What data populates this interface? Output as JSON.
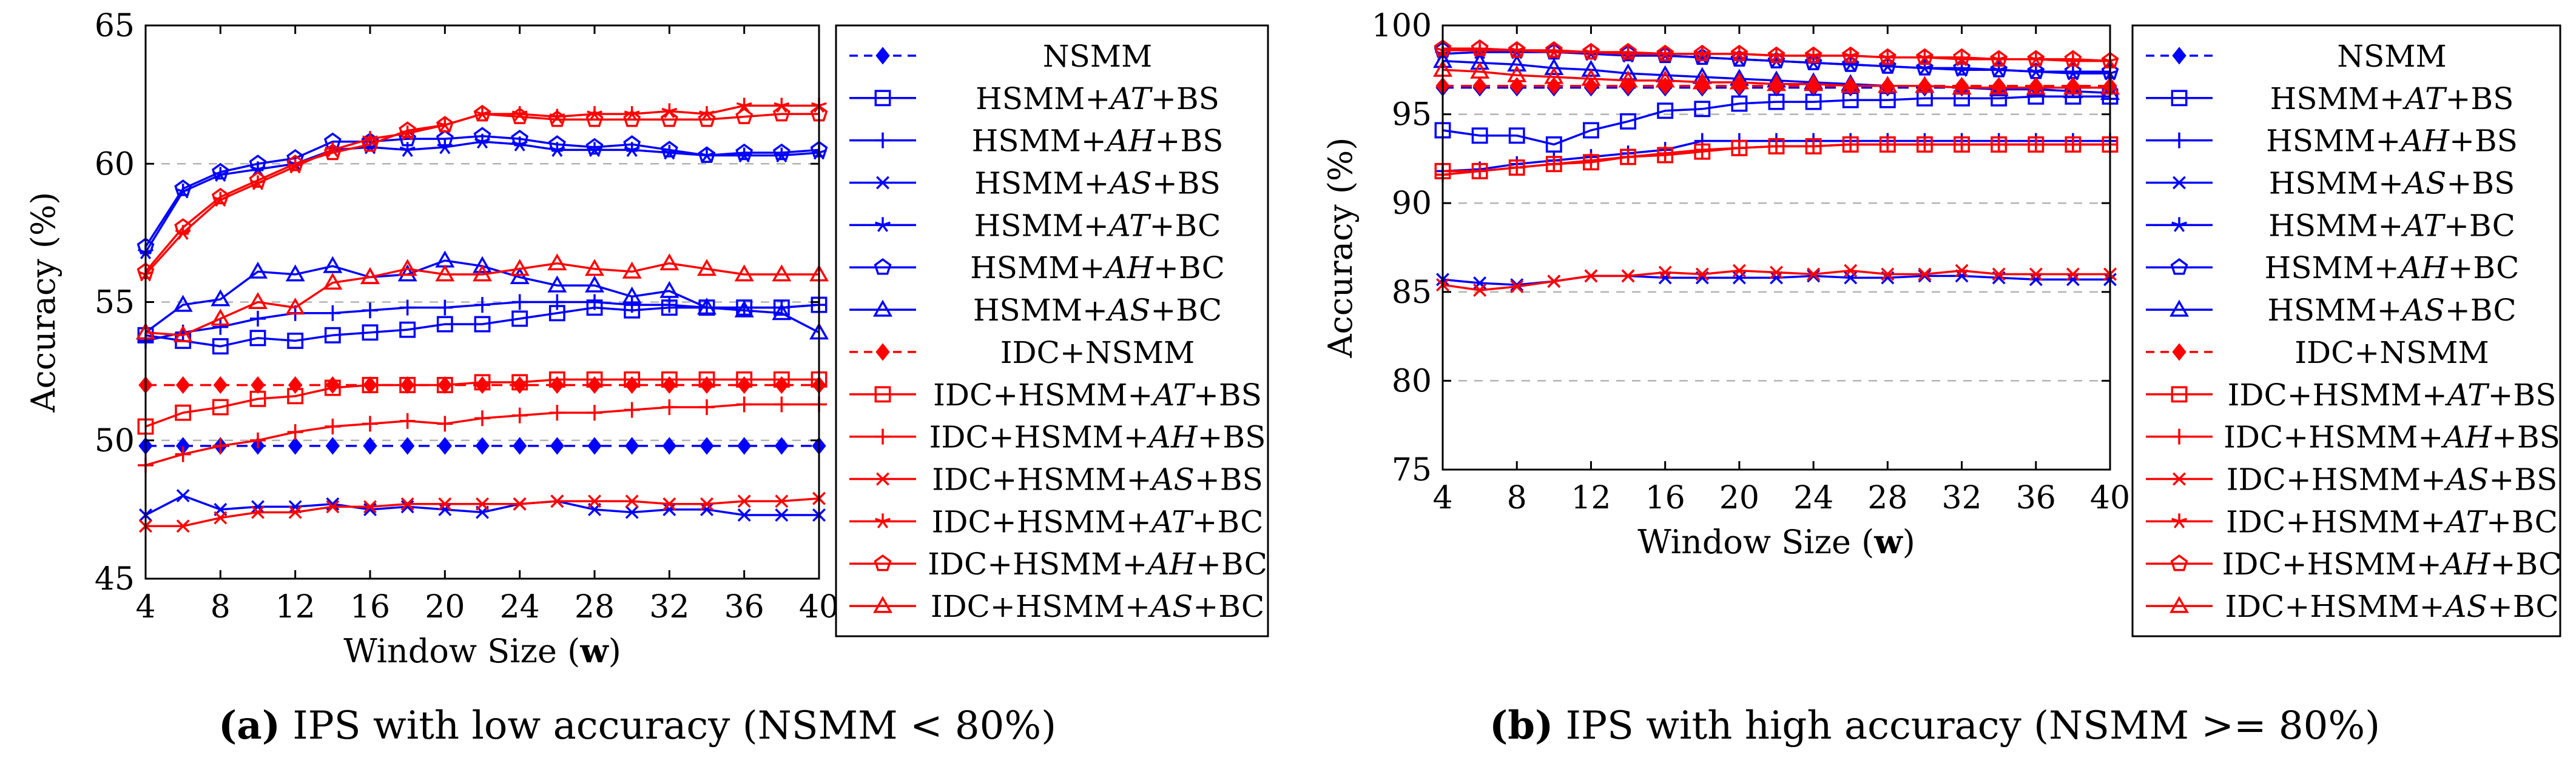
{
  "colors": {
    "blue": "#0000ff",
    "red": "#ff0000",
    "grid": "#b3b3b3",
    "axis": "#000000"
  },
  "chart_data": [
    {
      "type": "line",
      "panel": "a",
      "caption_label": "(a)",
      "caption_text": "IPS with low accuracy (NSMM < 80%)",
      "xlabel": "Window Size",
      "xlabel_var": "w",
      "ylabel": "Accuracy (%)",
      "xlim": [
        4,
        40
      ],
      "ylim": [
        45,
        65
      ],
      "xticks": [
        4,
        8,
        12,
        16,
        20,
        24,
        28,
        32,
        36,
        40
      ],
      "yticks": [
        45,
        50,
        55,
        60,
        65
      ],
      "grid_y": [
        50,
        55,
        60
      ],
      "legend_position": "right",
      "x": [
        4,
        6,
        8,
        10,
        12,
        14,
        16,
        18,
        20,
        22,
        24,
        26,
        28,
        30,
        32,
        34,
        36,
        38,
        40
      ],
      "series": [
        {
          "name": "NSMM",
          "prefix": "NSMM",
          "italic": "",
          "suffix": "",
          "color": "blue",
          "marker": "diamond",
          "dashed": true,
          "values": [
            49.8,
            49.8,
            49.8,
            49.8,
            49.8,
            49.8,
            49.8,
            49.8,
            49.8,
            49.8,
            49.8,
            49.8,
            49.8,
            49.8,
            49.8,
            49.8,
            49.8,
            49.8,
            49.8
          ]
        },
        {
          "name": "HSMM+AT+BS",
          "prefix": "HSMM+",
          "italic": "AT",
          "suffix": "+BS",
          "color": "blue",
          "marker": "square",
          "dashed": false,
          "values": [
            53.8,
            53.6,
            53.4,
            53.7,
            53.6,
            53.8,
            53.9,
            54.0,
            54.2,
            54.2,
            54.4,
            54.6,
            54.8,
            54.7,
            54.8,
            54.8,
            54.8,
            54.8,
            54.9
          ]
        },
        {
          "name": "HSMM+AH+BS",
          "prefix": "HSMM+",
          "italic": "AH",
          "suffix": "+BS",
          "color": "blue",
          "marker": "plus",
          "dashed": false,
          "values": [
            53.6,
            53.9,
            54.1,
            54.4,
            54.6,
            54.6,
            54.7,
            54.8,
            54.8,
            54.9,
            55.0,
            55.0,
            55.0,
            54.9,
            54.9,
            54.8,
            54.8,
            54.8,
            54.9
          ]
        },
        {
          "name": "HSMM+AS+BS",
          "prefix": "HSMM+",
          "italic": "AS",
          "suffix": "+BS",
          "color": "blue",
          "marker": "x",
          "dashed": false,
          "values": [
            47.3,
            48.0,
            47.5,
            47.6,
            47.6,
            47.7,
            47.5,
            47.6,
            47.5,
            47.4,
            47.7,
            47.8,
            47.5,
            47.4,
            47.5,
            47.5,
            47.3,
            47.3,
            47.3
          ]
        },
        {
          "name": "HSMM+AT+BC",
          "prefix": "HSMM+",
          "italic": "AT",
          "suffix": "+BC",
          "color": "blue",
          "marker": "star",
          "dashed": false,
          "values": [
            56.8,
            59.0,
            59.6,
            59.8,
            60.0,
            60.5,
            60.6,
            60.5,
            60.6,
            60.8,
            60.7,
            60.5,
            60.5,
            60.5,
            60.4,
            60.3,
            60.3,
            60.3,
            60.4
          ]
        },
        {
          "name": "HSMM+AH+BC",
          "prefix": "HSMM+",
          "italic": "AH",
          "suffix": "+BC",
          "color": "blue",
          "marker": "pentagon",
          "dashed": false,
          "values": [
            57.0,
            59.1,
            59.7,
            60.0,
            60.2,
            60.8,
            60.8,
            60.9,
            60.9,
            61.0,
            60.9,
            60.7,
            60.6,
            60.7,
            60.5,
            60.3,
            60.4,
            60.4,
            60.5
          ]
        },
        {
          "name": "HSMM+AS+BC",
          "prefix": "HSMM+",
          "italic": "AS",
          "suffix": "+BC",
          "color": "blue",
          "marker": "triangle",
          "dashed": false,
          "values": [
            53.9,
            54.9,
            55.1,
            56.1,
            56.0,
            56.3,
            55.9,
            56.0,
            56.5,
            56.3,
            55.9,
            55.6,
            55.6,
            55.2,
            55.4,
            54.8,
            54.7,
            54.6,
            53.9
          ]
        },
        {
          "name": "IDC+NSMM",
          "prefix": "IDC+NSMM",
          "italic": "",
          "suffix": "",
          "color": "red",
          "marker": "diamond",
          "dashed": true,
          "values": [
            52.0,
            52.0,
            52.0,
            52.0,
            52.0,
            52.0,
            52.0,
            52.0,
            52.0,
            52.0,
            52.0,
            52.0,
            52.0,
            52.0,
            52.0,
            52.0,
            52.0,
            52.0,
            52.0
          ]
        },
        {
          "name": "IDC+HSMM+AT+BS",
          "prefix": "IDC+HSMM+",
          "italic": "AT",
          "suffix": "+BS",
          "color": "red",
          "marker": "square",
          "dashed": false,
          "values": [
            50.5,
            51.0,
            51.2,
            51.5,
            51.6,
            51.9,
            52.0,
            52.0,
            52.0,
            52.1,
            52.1,
            52.2,
            52.2,
            52.2,
            52.2,
            52.2,
            52.2,
            52.2,
            52.2
          ]
        },
        {
          "name": "IDC+HSMM+AH+BS",
          "prefix": "IDC+HSMM+",
          "italic": "AH",
          "suffix": "+BS",
          "color": "red",
          "marker": "plus",
          "dashed": false,
          "values": [
            49.1,
            49.5,
            49.8,
            50.0,
            50.3,
            50.5,
            50.6,
            50.7,
            50.6,
            50.8,
            50.9,
            51.0,
            51.0,
            51.1,
            51.2,
            51.2,
            51.3,
            51.3,
            51.3
          ]
        },
        {
          "name": "IDC+HSMM+AS+BS",
          "prefix": "IDC+HSMM+",
          "italic": "AS",
          "suffix": "+BS",
          "color": "red",
          "marker": "x",
          "dashed": false,
          "values": [
            46.9,
            46.9,
            47.2,
            47.4,
            47.4,
            47.6,
            47.6,
            47.7,
            47.7,
            47.7,
            47.7,
            47.8,
            47.8,
            47.8,
            47.7,
            47.7,
            47.8,
            47.8,
            47.9
          ]
        },
        {
          "name": "IDC+HSMM+AT+BC",
          "prefix": "IDC+HSMM+",
          "italic": "AT",
          "suffix": "+BC",
          "color": "red",
          "marker": "star",
          "dashed": false,
          "values": [
            56.0,
            57.5,
            58.7,
            59.3,
            59.9,
            60.5,
            60.9,
            61.1,
            61.4,
            61.8,
            61.8,
            61.7,
            61.8,
            61.8,
            61.9,
            61.8,
            62.1,
            62.1,
            62.1
          ]
        },
        {
          "name": "IDC+HSMM+AH+BC",
          "prefix": "IDC+HSMM+",
          "italic": "AH",
          "suffix": "+BC",
          "color": "red",
          "marker": "pentagon",
          "dashed": false,
          "values": [
            56.1,
            57.7,
            58.8,
            59.4,
            60.0,
            60.4,
            60.7,
            61.2,
            61.4,
            61.8,
            61.7,
            61.6,
            61.6,
            61.6,
            61.6,
            61.6,
            61.7,
            61.8,
            61.8
          ]
        },
        {
          "name": "IDC+HSMM+AS+BC",
          "prefix": "IDC+HSMM+",
          "italic": "AS",
          "suffix": "+BC",
          "color": "red",
          "marker": "triangle",
          "dashed": false,
          "values": [
            53.9,
            53.8,
            54.4,
            55.0,
            54.8,
            55.7,
            55.9,
            56.2,
            56.0,
            56.0,
            56.2,
            56.4,
            56.2,
            56.1,
            56.4,
            56.2,
            56.0,
            56.0,
            56.0
          ]
        }
      ]
    },
    {
      "type": "line",
      "panel": "b",
      "caption_label": "(b)",
      "caption_text": "IPS with high accuracy (NSMM >= 80%)",
      "xlabel": "Window Size",
      "xlabel_var": "w",
      "ylabel": "Accuracy (%)",
      "xlim": [
        4,
        40
      ],
      "ylim": [
        75,
        100
      ],
      "xticks": [
        4,
        8,
        12,
        16,
        20,
        24,
        28,
        32,
        36,
        40
      ],
      "yticks": [
        75,
        80,
        85,
        90,
        95,
        100
      ],
      "grid_y": [
        80,
        85,
        90,
        95
      ],
      "legend_position": "right",
      "x": [
        4,
        6,
        8,
        10,
        12,
        14,
        16,
        18,
        20,
        22,
        24,
        26,
        28,
        30,
        32,
        34,
        36,
        38,
        40
      ],
      "series": [
        {
          "name": "NSMM",
          "prefix": "NSMM",
          "italic": "",
          "suffix": "",
          "color": "blue",
          "marker": "diamond",
          "dashed": true,
          "values": [
            96.5,
            96.5,
            96.5,
            96.5,
            96.5,
            96.5,
            96.5,
            96.5,
            96.5,
            96.5,
            96.5,
            96.5,
            96.5,
            96.5,
            96.5,
            96.5,
            96.5,
            96.5,
            96.5
          ]
        },
        {
          "name": "HSMM+AT+BS",
          "prefix": "HSMM+",
          "italic": "AT",
          "suffix": "+BS",
          "color": "blue",
          "marker": "square",
          "dashed": false,
          "values": [
            94.1,
            93.8,
            93.8,
            93.3,
            94.1,
            94.6,
            95.2,
            95.3,
            95.6,
            95.7,
            95.7,
            95.8,
            95.8,
            95.9,
            95.9,
            95.9,
            96.0,
            96.0,
            96.0
          ]
        },
        {
          "name": "HSMM+AH+BS",
          "prefix": "HSMM+",
          "italic": "AH",
          "suffix": "+BS",
          "color": "blue",
          "marker": "plus",
          "dashed": false,
          "values": [
            91.8,
            91.9,
            92.2,
            92.4,
            92.6,
            92.8,
            93.0,
            93.5,
            93.5,
            93.5,
            93.5,
            93.5,
            93.5,
            93.5,
            93.5,
            93.5,
            93.5,
            93.5,
            93.5
          ]
        },
        {
          "name": "HSMM+AS+BS",
          "prefix": "HSMM+",
          "italic": "AS",
          "suffix": "+BS",
          "color": "blue",
          "marker": "x",
          "dashed": false,
          "values": [
            85.7,
            85.5,
            85.4,
            85.6,
            85.9,
            85.9,
            85.8,
            85.8,
            85.8,
            85.8,
            85.9,
            85.8,
            85.8,
            85.9,
            85.9,
            85.8,
            85.7,
            85.7,
            85.7
          ]
        },
        {
          "name": "HSMM+AT+BC",
          "prefix": "HSMM+",
          "italic": "AT",
          "suffix": "+BC",
          "color": "blue",
          "marker": "star",
          "dashed": false,
          "values": [
            98.4,
            98.5,
            98.5,
            98.5,
            98.4,
            98.3,
            98.3,
            98.2,
            98.1,
            98.0,
            97.9,
            97.8,
            97.7,
            97.6,
            97.5,
            97.5,
            97.4,
            97.3,
            97.3
          ]
        },
        {
          "name": "HSMM+AH+BC",
          "prefix": "HSMM+",
          "italic": "AH",
          "suffix": "+BC",
          "color": "blue",
          "marker": "pentagon",
          "dashed": false,
          "values": [
            98.6,
            98.7,
            98.6,
            98.5,
            98.5,
            98.4,
            98.3,
            98.2,
            98.1,
            98.0,
            97.9,
            97.8,
            97.7,
            97.6,
            97.6,
            97.5,
            97.4,
            97.4,
            97.4
          ]
        },
        {
          "name": "HSMM+AS+BC",
          "prefix": "HSMM+",
          "italic": "AS",
          "suffix": "+BC",
          "color": "blue",
          "marker": "triangle",
          "dashed": false,
          "values": [
            98.0,
            97.9,
            97.8,
            97.6,
            97.5,
            97.3,
            97.2,
            97.1,
            97.0,
            96.9,
            96.8,
            96.7,
            96.6,
            96.6,
            96.5,
            96.4,
            96.4,
            96.3,
            96.2
          ]
        },
        {
          "name": "IDC+NSMM",
          "prefix": "IDC+NSMM",
          "italic": "",
          "suffix": "",
          "color": "red",
          "marker": "diamond",
          "dashed": true,
          "values": [
            96.6,
            96.6,
            96.6,
            96.6,
            96.6,
            96.6,
            96.6,
            96.6,
            96.6,
            96.6,
            96.6,
            96.6,
            96.6,
            96.6,
            96.6,
            96.6,
            96.6,
            96.6,
            96.6
          ]
        },
        {
          "name": "IDC+HSMM+AT+BS",
          "prefix": "IDC+HSMM+",
          "italic": "AT",
          "suffix": "+BS",
          "color": "red",
          "marker": "square",
          "dashed": false,
          "values": [
            91.8,
            91.8,
            92.0,
            92.2,
            92.3,
            92.6,
            92.7,
            92.9,
            93.1,
            93.2,
            93.2,
            93.3,
            93.3,
            93.3,
            93.3,
            93.3,
            93.3,
            93.3,
            93.3
          ]
        },
        {
          "name": "IDC+HSMM+AH+BS",
          "prefix": "IDC+HSMM+",
          "italic": "AH",
          "suffix": "+BS",
          "color": "red",
          "marker": "plus",
          "dashed": false,
          "values": [
            91.6,
            91.8,
            92.0,
            92.2,
            92.4,
            92.6,
            92.8,
            93.0,
            93.1,
            93.2,
            93.2,
            93.3,
            93.3,
            93.3,
            93.3,
            93.3,
            93.3,
            93.3,
            93.3
          ]
        },
        {
          "name": "IDC+HSMM+AS+BS",
          "prefix": "IDC+HSMM+",
          "italic": "AS",
          "suffix": "+BS",
          "color": "red",
          "marker": "x",
          "dashed": false,
          "values": [
            85.4,
            85.1,
            85.3,
            85.6,
            85.9,
            85.9,
            86.1,
            86.0,
            86.2,
            86.1,
            86.0,
            86.2,
            86.0,
            86.0,
            86.2,
            86.0,
            86.0,
            86.0,
            86.0
          ]
        },
        {
          "name": "IDC+HSMM+AT+BC",
          "prefix": "IDC+HSMM+",
          "italic": "AT",
          "suffix": "+BC",
          "color": "red",
          "marker": "star",
          "dashed": false,
          "values": [
            98.6,
            98.6,
            98.6,
            98.5,
            98.5,
            98.4,
            98.4,
            98.4,
            98.4,
            98.3,
            98.3,
            98.3,
            98.2,
            98.2,
            98.1,
            98.1,
            98.1,
            98.0,
            98.0
          ]
        },
        {
          "name": "IDC+HSMM+AH+BC",
          "prefix": "IDC+HSMM+",
          "italic": "AH",
          "suffix": "+BC",
          "color": "red",
          "marker": "pentagon",
          "dashed": false,
          "values": [
            98.7,
            98.7,
            98.6,
            98.6,
            98.5,
            98.5,
            98.4,
            98.4,
            98.4,
            98.3,
            98.3,
            98.3,
            98.2,
            98.2,
            98.2,
            98.1,
            98.1,
            98.1,
            98.0
          ]
        },
        {
          "name": "IDC+HSMM+AS+BC",
          "prefix": "IDC+HSMM+",
          "italic": "AS",
          "suffix": "+BC",
          "color": "red",
          "marker": "triangle",
          "dashed": false,
          "values": [
            97.5,
            97.4,
            97.2,
            97.1,
            97.0,
            96.9,
            96.9,
            96.8,
            96.8,
            96.7,
            96.7,
            96.6,
            96.6,
            96.6,
            96.5,
            96.5,
            96.5,
            96.5,
            96.5
          ]
        }
      ]
    }
  ]
}
